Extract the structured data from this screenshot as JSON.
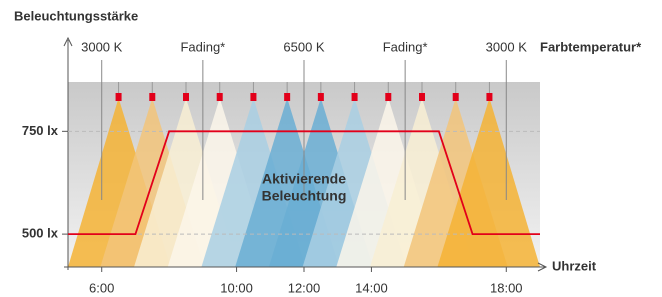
{
  "chart_data": {
    "type": "line",
    "title": "Beleuchtungsstärke",
    "x_label": "Uhrzeit",
    "annotation_title": "Farbtemperatur*",
    "center_text": [
      "Aktivierende",
      "Beleuchtung"
    ],
    "xlim": [
      5,
      19
    ],
    "xticks": [
      {
        "value": 6,
        "label": "6:00"
      },
      {
        "value": 10,
        "label": "10:00"
      },
      {
        "value": 12,
        "label": "12:00"
      },
      {
        "value": 14,
        "label": "14:00"
      },
      {
        "value": 18,
        "label": "18:00"
      }
    ],
    "ylim": [
      420,
      960
    ],
    "yticks": [
      {
        "value": 500,
        "label": "500 lx"
      },
      {
        "value": 750,
        "label": "750 lx"
      }
    ],
    "grid": true,
    "annotations": [
      {
        "x": 6,
        "label": "3000 K"
      },
      {
        "x": 9,
        "label": "Fading*"
      },
      {
        "x": 12,
        "label": "6500 K"
      },
      {
        "x": 15,
        "label": "Fading*"
      },
      {
        "x": 18,
        "label": "3000 K"
      }
    ],
    "lamps": {
      "x": [
        6.5,
        7.5,
        8.5,
        9.5,
        10.5,
        11.5,
        12.5,
        13.5,
        14.5,
        15.5,
        16.5,
        17.5
      ],
      "colors": [
        "#f5b335",
        "#f2c47a",
        "#f8eed3",
        "#fbf6ea",
        "#a9cfe3",
        "#6aaed3",
        "#6aaed3",
        "#a9cfe3",
        "#fbf6ea",
        "#f8eed3",
        "#f2c47a",
        "#f5b335"
      ]
    },
    "lamp_color": "#e2001a",
    "series": [
      {
        "color": "#e2001a",
        "x": [
          5,
          7,
          8,
          16,
          17,
          19
        ],
        "values": [
          500,
          500,
          750,
          750,
          500,
          500
        ]
      }
    ]
  }
}
